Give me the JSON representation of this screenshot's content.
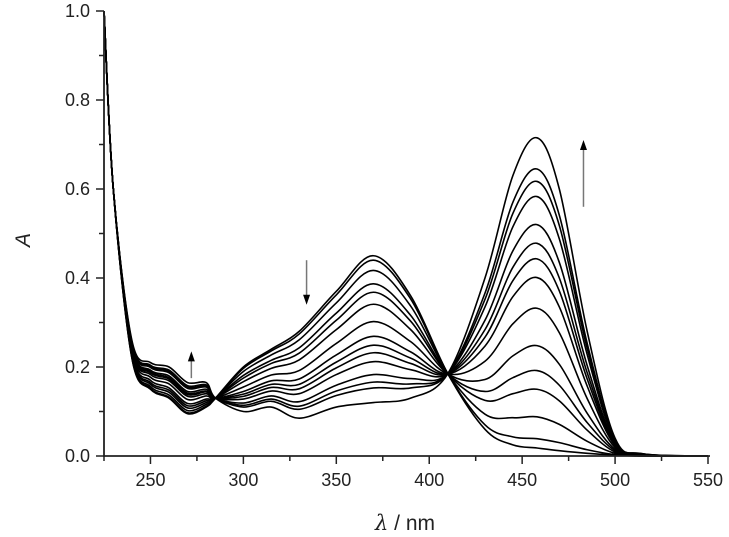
{
  "chart_data": {
    "type": "line",
    "title": "",
    "xlabel": "λ / nm",
    "xlabel_symbol": "λ",
    "xlabel_unit": " / nm",
    "ylabel": "A",
    "xlim": [
      225,
      550
    ],
    "ylim": [
      0.0,
      1.0
    ],
    "xticks": [
      250,
      300,
      350,
      400,
      450,
      500,
      550
    ],
    "yticks": [
      "0.0",
      "0.2",
      "0.4",
      "0.6",
      "0.8",
      "1.0"
    ],
    "grid": false,
    "legend": "none",
    "line_color": "#000000",
    "arrow_color": "#000000",
    "x": [
      225,
      230,
      240,
      250,
      260,
      270,
      280,
      285,
      300,
      315,
      330,
      350,
      370,
      390,
      410,
      430,
      445,
      458,
      470,
      485,
      500,
      515,
      550
    ],
    "series": [
      {
        "values": [
          1.0,
          0.6,
          0.26,
          0.21,
          0.2,
          0.165,
          0.165,
          0.13,
          0.1,
          0.11,
          0.085,
          0.11,
          0.12,
          0.13,
          0.185,
          0.4,
          0.63,
          0.715,
          0.6,
          0.28,
          0.04,
          0.005,
          0
        ]
      },
      {
        "values": [
          1.0,
          0.6,
          0.256,
          0.204,
          0.193,
          0.158,
          0.16,
          0.13,
          0.11,
          0.123,
          0.105,
          0.136,
          0.153,
          0.153,
          0.185,
          0.366,
          0.57,
          0.645,
          0.541,
          0.253,
          0.036,
          0.005,
          0
        ]
      },
      {
        "values": [
          1.0,
          0.6,
          0.254,
          0.202,
          0.19,
          0.155,
          0.157,
          0.13,
          0.114,
          0.128,
          0.112,
          0.146,
          0.166,
          0.162,
          0.185,
          0.352,
          0.545,
          0.617,
          0.518,
          0.242,
          0.035,
          0.004,
          0
        ]
      },
      {
        "values": [
          1.0,
          0.6,
          0.252,
          0.199,
          0.187,
          0.152,
          0.155,
          0.13,
          0.119,
          0.135,
          0.122,
          0.159,
          0.183,
          0.174,
          0.185,
          0.335,
          0.515,
          0.583,
          0.488,
          0.228,
          0.033,
          0.004,
          0
        ]
      },
      {
        "values": [
          1.0,
          0.6,
          0.249,
          0.193,
          0.18,
          0.145,
          0.15,
          0.13,
          0.128,
          0.146,
          0.14,
          0.183,
          0.212,
          0.194,
          0.185,
          0.305,
          0.461,
          0.52,
          0.435,
          0.203,
          0.029,
          0.004,
          0
        ]
      },
      {
        "values": [
          1.0,
          0.6,
          0.246,
          0.19,
          0.176,
          0.141,
          0.146,
          0.13,
          0.134,
          0.154,
          0.151,
          0.198,
          0.232,
          0.208,
          0.185,
          0.284,
          0.424,
          0.478,
          0.4,
          0.187,
          0.027,
          0.003,
          0
        ]
      },
      {
        "values": [
          1.0,
          0.6,
          0.244,
          0.187,
          0.173,
          0.138,
          0.144,
          0.13,
          0.139,
          0.161,
          0.161,
          0.211,
          0.249,
          0.22,
          0.185,
          0.267,
          0.394,
          0.443,
          0.371,
          0.173,
          0.025,
          0.003,
          0
        ]
      },
      {
        "values": [
          1.0,
          0.6,
          0.242,
          0.183,
          0.169,
          0.134,
          0.14,
          0.13,
          0.145,
          0.169,
          0.173,
          0.227,
          0.269,
          0.234,
          0.185,
          0.247,
          0.358,
          0.401,
          0.335,
          0.157,
          0.023,
          0.003,
          0
        ]
      },
      {
        "values": [
          1.0,
          0.6,
          0.238,
          0.177,
          0.162,
          0.127,
          0.135,
          0.13,
          0.155,
          0.182,
          0.192,
          0.253,
          0.302,
          0.257,
          0.185,
          0.213,
          0.297,
          0.332,
          0.277,
          0.129,
          0.019,
          0.002,
          0
        ]
      },
      {
        "values": [
          1.0,
          0.6,
          0.233,
          0.17,
          0.153,
          0.118,
          0.128,
          0.13,
          0.167,
          0.197,
          0.216,
          0.284,
          0.341,
          0.284,
          0.185,
          0.172,
          0.225,
          0.248,
          0.206,
          0.096,
          0.015,
          0.002,
          0
        ]
      },
      {
        "values": [
          1.0,
          0.6,
          0.23,
          0.165,
          0.148,
          0.113,
          0.124,
          0.13,
          0.175,
          0.208,
          0.231,
          0.305,
          0.368,
          0.303,
          0.185,
          0.145,
          0.176,
          0.192,
          0.159,
          0.075,
          0.012,
          0.001,
          0
        ]
      },
      {
        "values": [
          1.0,
          0.6,
          0.228,
          0.161,
          0.143,
          0.108,
          0.12,
          0.13,
          0.181,
          0.215,
          0.243,
          0.321,
          0.387,
          0.316,
          0.185,
          0.125,
          0.14,
          0.15,
          0.124,
          0.058,
          0.009,
          0.001,
          0
        ]
      },
      {
        "values": [
          1.0,
          0.6,
          0.224,
          0.156,
          0.137,
          0.102,
          0.116,
          0.13,
          0.19,
          0.227,
          0.261,
          0.344,
          0.417,
          0.337,
          0.185,
          0.094,
          0.086,
          0.088,
          0.071,
          0.033,
          0.006,
          0,
          0
        ]
      },
      {
        "values": [
          1.0,
          0.6,
          0.221,
          0.152,
          0.132,
          0.097,
          0.112,
          0.13,
          0.197,
          0.236,
          0.274,
          0.362,
          0.44,
          0.353,
          0.185,
          0.07,
          0.043,
          0.039,
          0.03,
          0.014,
          0.003,
          0,
          0
        ]
      },
      {
        "values": [
          1.0,
          0.6,
          0.22,
          0.15,
          0.13,
          0.095,
          0.11,
          0.13,
          0.2,
          0.24,
          0.28,
          0.37,
          0.45,
          0.36,
          0.185,
          0.06,
          0.025,
          0.018,
          0.012,
          0.006,
          0.002,
          0,
          0
        ]
      }
    ],
    "annotations": [
      {
        "type": "arrow",
        "direction": "up",
        "x": 272,
        "y_from": 0.175,
        "y_to": 0.235
      },
      {
        "type": "arrow",
        "direction": "down",
        "x": 334,
        "y_from": 0.44,
        "y_to": 0.34
      },
      {
        "type": "arrow",
        "direction": "up",
        "x": 483,
        "y_from": 0.56,
        "y_to": 0.71
      }
    ]
  }
}
